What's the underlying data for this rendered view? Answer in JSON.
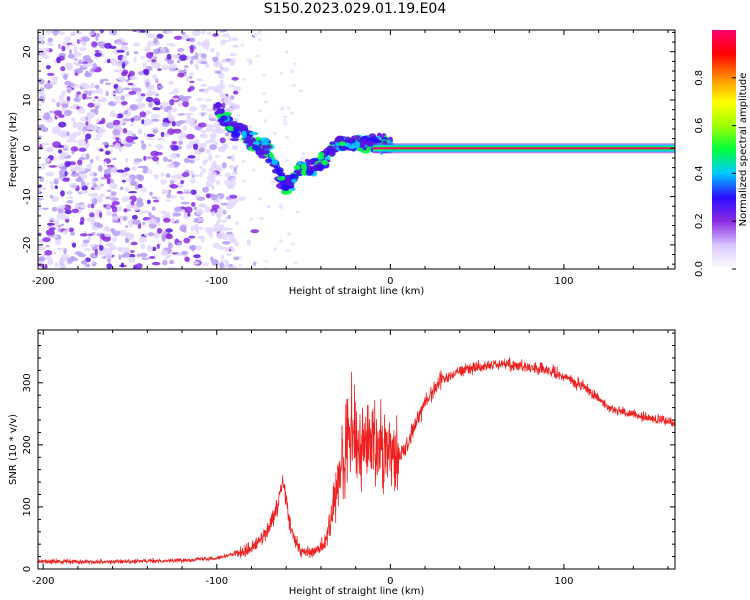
{
  "title": "S150.2023.029.01.19.E04",
  "chart_data": [
    {
      "type": "heatmap",
      "xlabel": "Height of straight line (km)",
      "ylabel": "Frequency (Hz)",
      "xlim": [
        -203,
        164
      ],
      "ylim": [
        -25,
        24.5
      ],
      "x_ticks": [
        -200,
        -100,
        0,
        100
      ],
      "y_ticks": [
        -20,
        -10,
        0,
        10,
        20
      ],
      "colorbar": {
        "label": "Normalized spectral amplitude",
        "range": [
          0,
          1
        ],
        "ticks": [
          "0.0",
          "0.2",
          "0.4",
          "0.6",
          "0.8"
        ],
        "tick_values": [
          0,
          0.2,
          0.4,
          0.6,
          0.8
        ],
        "stops": [
          "#ffffff",
          "#d7c6ff",
          "#8a2be2",
          "#2a0dff",
          "#00c8ff",
          "#00ff40",
          "#a0ff00",
          "#ffff00",
          "#ff8c00",
          "#ff0000",
          "#ff0070"
        ]
      },
      "features": {
        "noise_region_km": [
          -203,
          -88
        ],
        "diagonal_trace": [
          [
            -100,
            8
          ],
          [
            -90,
            4
          ],
          [
            -80,
            2
          ],
          [
            -70,
            -1
          ],
          [
            -60,
            -8
          ],
          [
            -50,
            -4
          ],
          [
            -40,
            -3
          ],
          [
            -30,
            1
          ],
          [
            -20,
            1
          ],
          [
            -10,
            1
          ],
          [
            0,
            0.5
          ]
        ],
        "steady_line": {
          "x_start": -10,
          "x_end": 164,
          "frequency": 0,
          "amplitude": 1.0
        }
      }
    },
    {
      "type": "line",
      "xlabel": "Height of straight line (km)",
      "ylabel": "SNR (10 * v/v)",
      "xlim": [
        -203,
        164
      ],
      "ylim": [
        0,
        385
      ],
      "x_ticks": [
        -200,
        -100,
        0,
        100
      ],
      "y_ticks": [
        0,
        100,
        200,
        300
      ],
      "color": "#ee2020",
      "series": [
        {
          "envelope": [
            [
              -203,
              12
            ],
            [
              -150,
              12
            ],
            [
              -120,
              14
            ],
            [
              -100,
              18
            ],
            [
              -90,
              24
            ],
            [
              -80,
              34
            ],
            [
              -72,
              55
            ],
            [
              -66,
              90
            ],
            [
              -62,
              140
            ],
            [
              -60,
              110
            ],
            [
              -57,
              60
            ],
            [
              -52,
              28
            ],
            [
              -45,
              25
            ],
            [
              -38,
              40
            ],
            [
              -34,
              80
            ],
            [
              -30,
              140
            ],
            [
              -26,
              200
            ],
            [
              -22,
              220
            ],
            [
              -18,
              190
            ],
            [
              -14,
              200
            ],
            [
              -10,
              210
            ],
            [
              -6,
              205
            ],
            [
              -2,
              200
            ],
            [
              0,
              195
            ],
            [
              5,
              180
            ],
            [
              10,
              200
            ],
            [
              15,
              240
            ],
            [
              20,
              270
            ],
            [
              25,
              290
            ],
            [
              30,
              305
            ],
            [
              40,
              320
            ],
            [
              50,
              325
            ],
            [
              60,
              330
            ],
            [
              70,
              330
            ],
            [
              80,
              325
            ],
            [
              90,
              320
            ],
            [
              100,
              310
            ],
            [
              110,
              295
            ],
            [
              118,
              280
            ],
            [
              125,
              262
            ],
            [
              135,
              252
            ],
            [
              145,
              245
            ],
            [
              155,
              240
            ],
            [
              164,
              235
            ]
          ]
        }
      ]
    }
  ]
}
